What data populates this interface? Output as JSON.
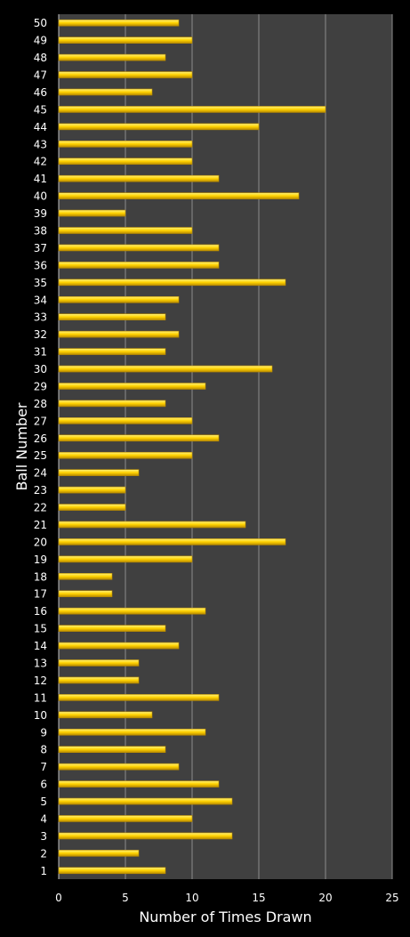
{
  "colors": {
    "page_background": "#000000",
    "plot_background": "#404040",
    "gridline": "#8c8c8c",
    "bar_fill": "#ffd200",
    "bar_highlight": "#fff27a",
    "bar_shadow": "#b88a00",
    "text": "#ffffff"
  },
  "chart_data": {
    "type": "bar",
    "orientation": "horizontal",
    "categories": [
      "1",
      "2",
      "3",
      "4",
      "5",
      "6",
      "7",
      "8",
      "9",
      "10",
      "11",
      "12",
      "13",
      "14",
      "15",
      "16",
      "17",
      "18",
      "19",
      "20",
      "21",
      "22",
      "23",
      "24",
      "25",
      "26",
      "27",
      "28",
      "29",
      "30",
      "31",
      "32",
      "33",
      "34",
      "35",
      "36",
      "37",
      "38",
      "39",
      "40",
      "41",
      "42",
      "43",
      "44",
      "45",
      "46",
      "47",
      "48",
      "49",
      "50"
    ],
    "values": [
      8,
      6,
      13,
      10,
      13,
      12,
      9,
      8,
      11,
      7,
      12,
      6,
      6,
      9,
      8,
      11,
      4,
      4,
      10,
      17,
      14,
      5,
      5,
      6,
      10,
      12,
      10,
      8,
      11,
      16,
      8,
      9,
      8,
      9,
      17,
      12,
      12,
      10,
      5,
      18,
      12,
      10,
      10,
      15,
      20,
      7,
      10,
      8,
      10,
      9
    ],
    "xlabel": "Number of Times Drawn",
    "ylabel": "Ball Number",
    "xlim": [
      0,
      25
    ],
    "xticks": [
      0,
      5,
      10,
      15,
      20,
      25
    ],
    "grid": "vertical gridlines",
    "legend": "none"
  }
}
